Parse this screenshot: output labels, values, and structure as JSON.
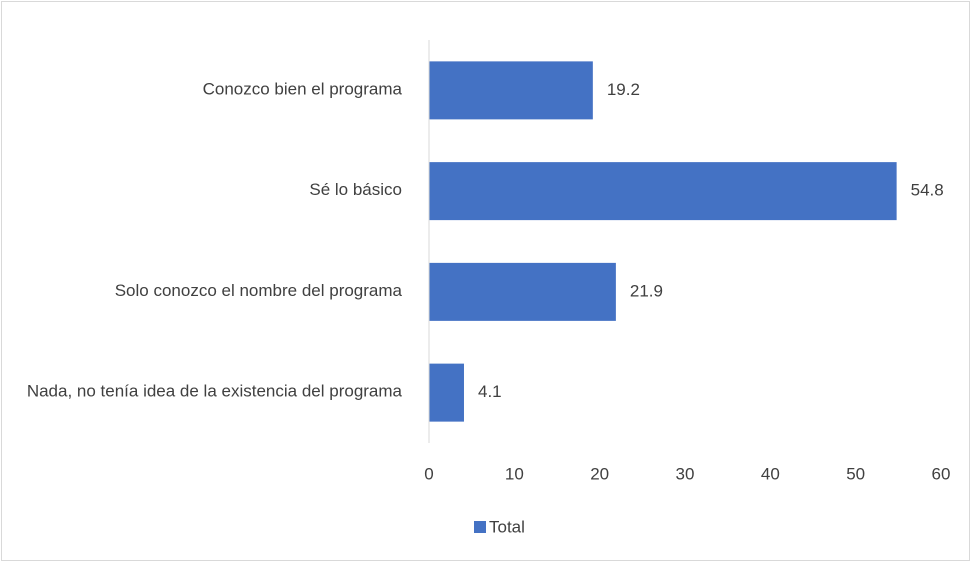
{
  "chart_data": {
    "type": "bar",
    "orientation": "horizontal",
    "categories": [
      "Conozco bien el programa",
      "Sé lo básico",
      "Solo conozco el nombre del programa",
      "Nada, no tenía idea de la existencia del programa"
    ],
    "series": [
      {
        "name": "Total",
        "color": "#4472c4",
        "values": [
          19.2,
          54.8,
          21.9,
          4.1
        ]
      }
    ],
    "xlim": [
      0,
      60
    ],
    "xticks": [
      0,
      10,
      20,
      30,
      40,
      50,
      60
    ],
    "grid": false,
    "legend": "bottom"
  }
}
